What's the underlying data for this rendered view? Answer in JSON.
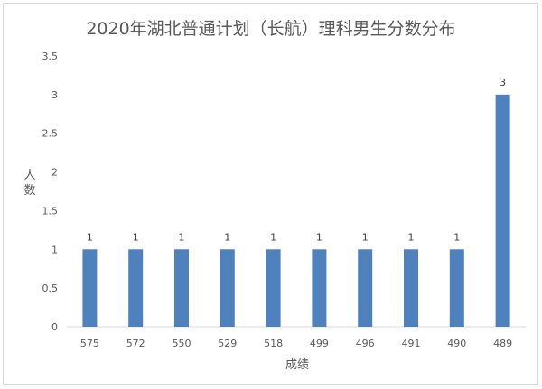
{
  "chart_data": {
    "type": "bar",
    "title": "2020年湖北普通计划（长航）理科男生分数分布",
    "xlabel": "成绩",
    "ylabel": "人数",
    "categories": [
      "575",
      "572",
      "550",
      "529",
      "518",
      "499",
      "496",
      "491",
      "490",
      "489"
    ],
    "values": [
      1,
      1,
      1,
      1,
      1,
      1,
      1,
      1,
      1,
      3
    ],
    "data_labels": [
      "1",
      "1",
      "1",
      "1",
      "1",
      "1",
      "1",
      "1",
      "1",
      "3"
    ],
    "ylim": [
      0,
      3.5
    ],
    "yticks": [
      "0",
      "0.5",
      "1",
      "1.5",
      "2",
      "2.5",
      "3",
      "3.5"
    ],
    "grid": false,
    "legend": "none",
    "bar_color": "#4f81bd"
  }
}
